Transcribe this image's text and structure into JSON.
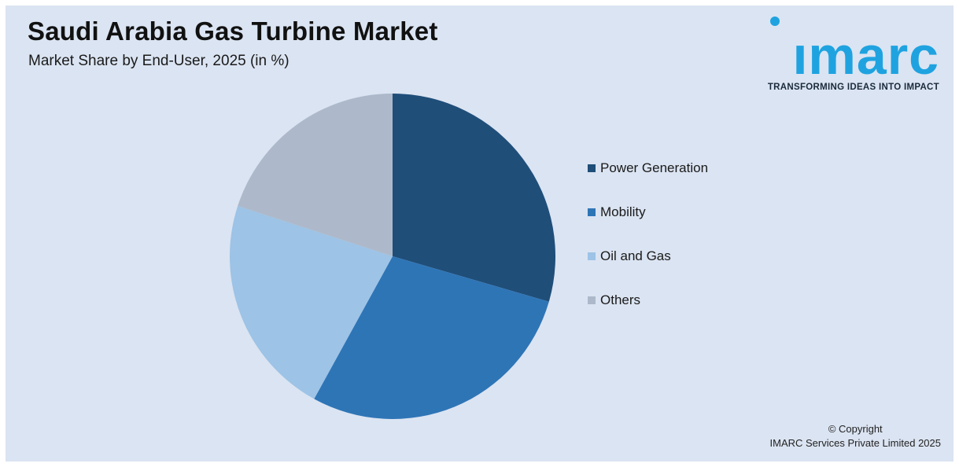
{
  "header": {
    "title": "Saudi Arabia Gas Turbine Market",
    "subtitle": "Market Share by End-User, 2025 (in %)"
  },
  "logo": {
    "word": "ımarc",
    "tagline": "TRANSFORMING IDEAS INTO IMPACT",
    "color": "#1fa3e0"
  },
  "chart_data": {
    "type": "pie",
    "title": "Saudi Arabia Gas Turbine Market",
    "subtitle": "Market Share by End-User, 2025 (in %)",
    "categories": [
      "Power Generation",
      "Mobility",
      "Oil and Gas",
      "Others"
    ],
    "values": [
      29.5,
      28.5,
      22,
      20
    ],
    "colors": [
      "#1f4e79",
      "#2e75b6",
      "#9dc3e6",
      "#adb9ca"
    ],
    "legend": "right"
  },
  "footer": {
    "line1": "© Copyright",
    "line2": "IMARC Services Private Limited 2025"
  }
}
